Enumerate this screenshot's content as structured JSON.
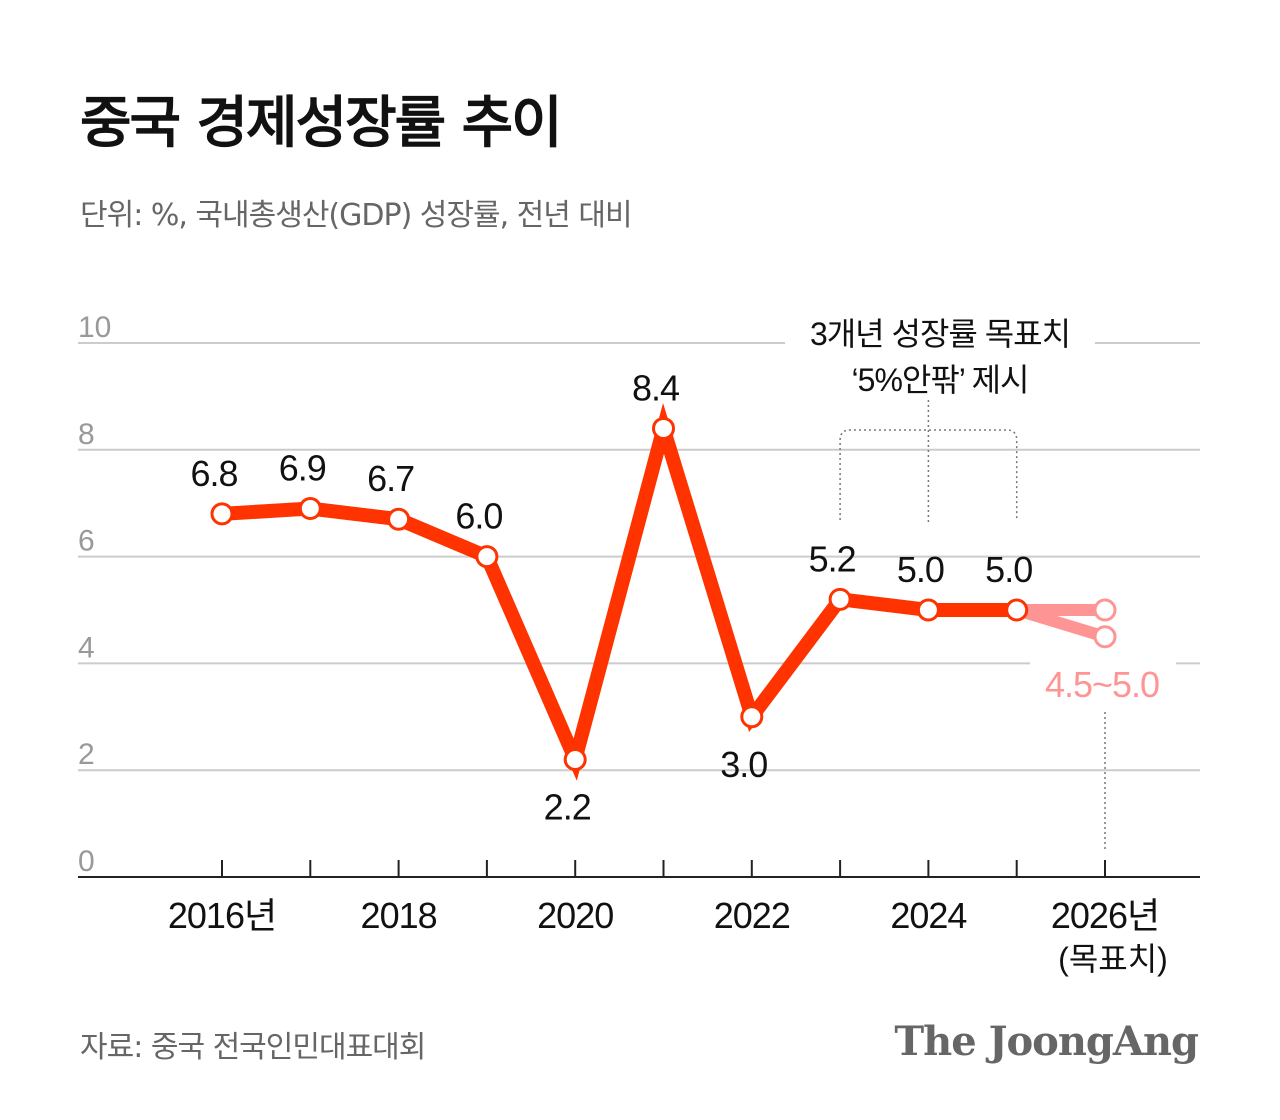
{
  "title": "중국 경제성장률 추이",
  "subtitle": "단위: %, 국내총생산(GDP) 성장률, 전년 대비",
  "source": "자료: 중국 전국인민대표대회",
  "logo": "The JoongAng",
  "colors": {
    "line": "#FF3300",
    "target": "#FF9494",
    "grid": "#CCCCCC",
    "axis_label": "#999999"
  },
  "chart_data": {
    "type": "line",
    "ylim": [
      0,
      10
    ],
    "yticks": [
      "0",
      "2",
      "4",
      "6",
      "8",
      "10"
    ],
    "grid": true,
    "x": [
      2016,
      2017,
      2018,
      2019,
      2020,
      2021,
      2022,
      2023,
      2024,
      2025
    ],
    "xtick_labels": [
      {
        "x": 2016,
        "label": "2016년"
      },
      {
        "x": 2018,
        "label": "2018"
      },
      {
        "x": 2020,
        "label": "2020"
      },
      {
        "x": 2022,
        "label": "2022"
      },
      {
        "x": 2024,
        "label": "2024"
      },
      {
        "x": 2026,
        "label": "2026년",
        "sublabel": "(목표치)"
      }
    ],
    "values": [
      6.8,
      6.9,
      6.7,
      6.0,
      2.2,
      8.4,
      3.0,
      5.2,
      5.0,
      5.0
    ],
    "data_labels": [
      "6.8",
      "6.9",
      "6.7",
      "6.0",
      "2.2",
      "8.4",
      "3.0",
      "5.2",
      "5.0",
      "5.0"
    ],
    "target": {
      "x": 2026,
      "low": 4.5,
      "high": 5.0,
      "label": "4.5~5.0"
    },
    "annotation": {
      "lines": [
        "3개년 성장률 목표치",
        "‘5%안팎’ 제시"
      ],
      "x_range": [
        2023,
        2025
      ]
    }
  }
}
